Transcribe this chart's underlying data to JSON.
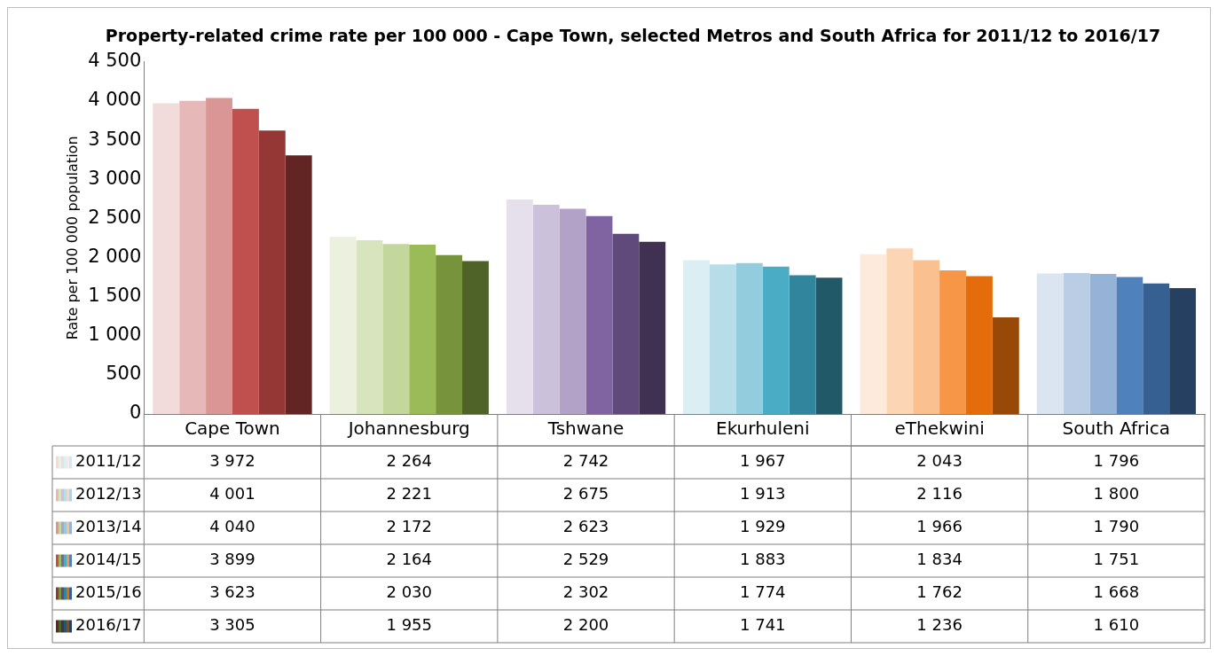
{
  "chart_data": {
    "type": "bar",
    "title": "Property-related crime rate per 100 000 - Cape Town, selected Metros and South Africa for 2011/12 to 2016/17",
    "ylabel": "Rate per 100 000 population",
    "categories": [
      "Cape Town",
      "Johannesburg",
      "Tshwane",
      "Ekurhuleni",
      "eThekwini",
      "South Africa"
    ],
    "ylim": [
      0,
      4500
    ],
    "yticks": [
      0,
      {
        "value": 500,
        "label": "500"
      },
      {
        "value": 1000,
        "label": "1 000"
      },
      {
        "value": 1500,
        "label": "1 500"
      },
      {
        "value": 2000,
        "label": "2 000"
      },
      {
        "value": 2500,
        "label": "2 500"
      },
      {
        "value": 3000,
        "label": "3 000"
      },
      {
        "value": 3500,
        "label": "3 500"
      },
      {
        "value": 4000,
        "label": "4 000"
      },
      {
        "value": 4500,
        "label": "4 500"
      }
    ],
    "grid": false,
    "legend": "bottom left",
    "series": [
      {
        "name": "2011/12",
        "colors": [
          "#f2dcdb",
          "#ebf1de",
          "#e6e0ec",
          "#dbeef4",
          "#fdeada",
          "#dbe5f1"
        ],
        "values": [
          3972,
          2264,
          2742,
          1967,
          2043,
          1796
        ],
        "value_labels": [
          "3 972",
          "2 264",
          "2 742",
          "1 967",
          "2 043",
          "1 796"
        ]
      },
      {
        "name": "2012/13",
        "colors": [
          "#e6b9b8",
          "#d7e4bd",
          "#ccc1da",
          "#b7dee8",
          "#fcd5b5",
          "#b9cde5"
        ],
        "values": [
          4001,
          2221,
          2675,
          1913,
          2116,
          1800
        ],
        "value_labels": [
          "4 001",
          "2 221",
          "2 675",
          "1 913",
          "2 116",
          "1 800"
        ]
      },
      {
        "name": "2013/14",
        "colors": [
          "#d99694",
          "#c3d69b",
          "#b3a2c7",
          "#93cddd",
          "#fac090",
          "#95b3d7"
        ],
        "values": [
          4040,
          2172,
          2623,
          1929,
          1966,
          1790
        ],
        "value_labels": [
          "4 040",
          "2 172",
          "2 623",
          "1 929",
          "1 966",
          "1 790"
        ]
      },
      {
        "name": "2014/15",
        "colors": [
          "#c0504d",
          "#9bbb59",
          "#8064a2",
          "#4bacc6",
          "#f79646",
          "#4f81bd"
        ],
        "values": [
          3899,
          2164,
          2529,
          1883,
          1834,
          1751
        ],
        "value_labels": [
          "3 899",
          "2 164",
          "2 529",
          "1 883",
          "1 834",
          "1 751"
        ]
      },
      {
        "name": "2015/16",
        "colors": [
          "#953735",
          "#77933c",
          "#604a7b",
          "#31859c",
          "#e46c0a",
          "#376092"
        ],
        "values": [
          3623,
          2030,
          2302,
          1774,
          1762,
          1668
        ],
        "value_labels": [
          "3 623",
          "2 030",
          "2 302",
          "1 774",
          "1 762",
          "1 668"
        ]
      },
      {
        "name": "2016/17",
        "colors": [
          "#632523",
          "#4f6228",
          "#403152",
          "#215968",
          "#984807",
          "#254061"
        ],
        "values": [
          3305,
          1955,
          2200,
          1741,
          1236,
          1610
        ],
        "value_labels": [
          "3 305",
          "1 955",
          "2 200",
          "1 741",
          "1 236",
          "1 610"
        ]
      }
    ]
  }
}
